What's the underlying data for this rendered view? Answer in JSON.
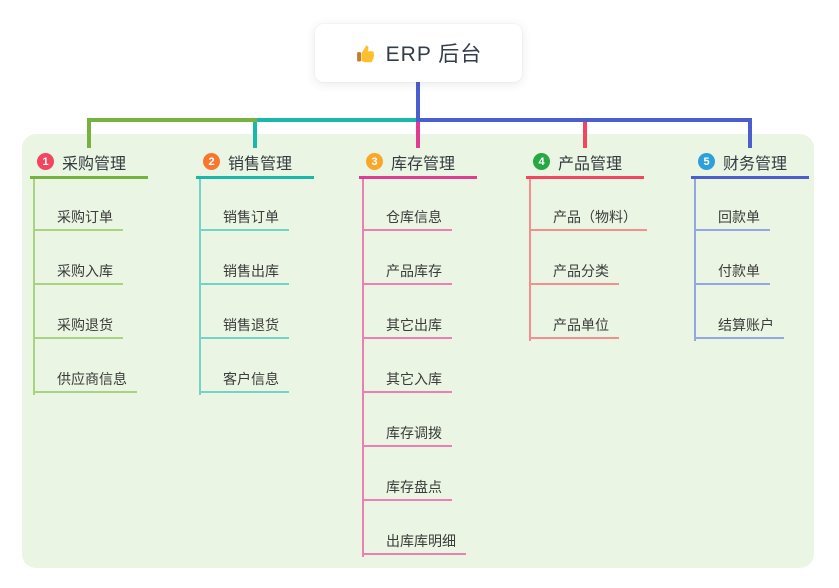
{
  "root": {
    "label": "ERP 后台",
    "icon": "thumbs-up-icon"
  },
  "colors": {
    "panel_background": "#eaf6e3",
    "root_connector": "#4a5ecd",
    "root_text": "#333c49"
  },
  "branches": [
    {
      "index": "1",
      "label": "采购管理",
      "badge_color": "#f4455f",
      "line_color": "#76b33e",
      "child_line_color": "#a9d47f",
      "children": [
        "采购订单",
        "采购入库",
        "采购退货",
        "供应商信息"
      ]
    },
    {
      "index": "2",
      "label": "销售管理",
      "badge_color": "#f8772e",
      "line_color": "#18b8ac",
      "child_line_color": "#74d3c8",
      "children": [
        "销售订单",
        "销售出库",
        "销售退货",
        "客户信息"
      ]
    },
    {
      "index": "3",
      "label": "库存管理",
      "badge_color": "#f9a72b",
      "line_color": "#e03c94",
      "child_line_color": "#ee7fb4",
      "children": [
        "仓库信息",
        "产品库存",
        "其它出库",
        "其它入库",
        "库存调拨",
        "库存盘点",
        "出库库明细"
      ]
    },
    {
      "index": "4",
      "label": "产品管理",
      "badge_color": "#27a844",
      "line_color": "#f4445e",
      "child_line_color": "#f3908f",
      "children": [
        "产品（物料）",
        "产品分类",
        "产品单位"
      ]
    },
    {
      "index": "5",
      "label": "财务管理",
      "badge_color": "#2e9fd8",
      "line_color": "#4a5ecd",
      "child_line_color": "#93a8e0",
      "children": [
        "回款单",
        "付款单",
        "结算账户"
      ]
    }
  ]
}
